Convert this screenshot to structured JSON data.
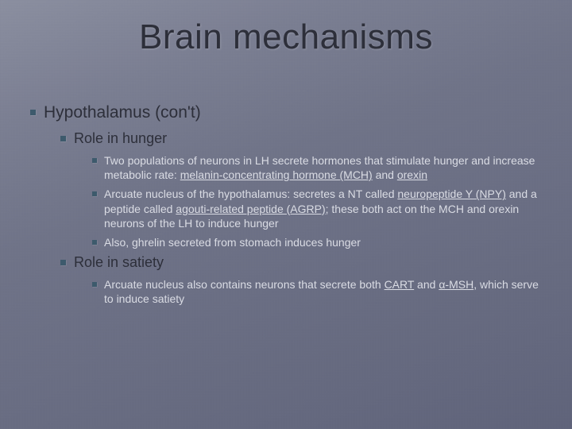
{
  "colors": {
    "bg_grad_start": "#8b8fa0",
    "bg_grad_end": "#5f637a",
    "title_color": "#2d2f3a",
    "body_dark": "#2d2f3a",
    "body_light": "#dadce4",
    "bullet_color": "#3d5a6c"
  },
  "typography": {
    "title_fontsize": 44,
    "lvl1_fontsize": 21,
    "lvl2_fontsize": 18,
    "lvl3_fontsize": 14,
    "font_family": "Tahoma"
  },
  "title": "Brain mechanisms",
  "lvl1": {
    "text": "Hypothalamus (con't)"
  },
  "lvl2a": {
    "text": "Role in hunger"
  },
  "lvl3a": {
    "pre": "Two populations of neurons in LH secrete hormones that stimulate hunger and increase metabolic rate: ",
    "u1": "melanin-concentrating hormone (MCH)",
    "mid": " and ",
    "u2": "orexin"
  },
  "lvl3b": {
    "pre": "Arcuate nucleus of the hypothalamus: secretes a NT called ",
    "u1": "neuropeptide Y (NPY)",
    "mid1": " and a peptide called ",
    "u2": "agouti-related peptide (AGRP)",
    "post": "; these both act on the MCH and orexin neurons of the LH to induce hunger"
  },
  "lvl3c": {
    "text": "Also, ghrelin secreted from stomach induces hunger"
  },
  "lvl2b": {
    "text": "Role in satiety"
  },
  "lvl4a": {
    "pre": "Arcuate nucleus also contains neurons that secrete both ",
    "u1": "CART",
    "mid": " and ",
    "u2": "α-MSH",
    "post": ", which serve to induce satiety"
  }
}
